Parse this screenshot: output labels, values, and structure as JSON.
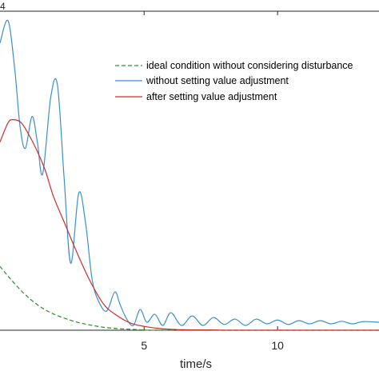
{
  "chart_data": {
    "type": "line",
    "title": "",
    "xlabel": "time/s",
    "ylabel": "",
    "exponent_label": "4",
    "xlim": [
      -0.4,
      13.8
    ],
    "ylim": [
      0,
      100
    ],
    "x_ticks": [
      5,
      10
    ],
    "grid": false,
    "legend_position": "top-right",
    "series": [
      {
        "name": "ideal condition without considering disturbance",
        "color": "#2e8b2e",
        "style": "dashed",
        "x": [
          -0.4,
          0.0,
          0.5,
          1.0,
          1.5,
          2.0,
          2.5,
          3.0,
          3.5,
          4.0,
          4.5,
          5.0,
          6.0,
          13.8
        ],
        "y": [
          20,
          16,
          11.5,
          8,
          5.5,
          3.8,
          2.5,
          1.6,
          0.9,
          0.5,
          0.3,
          0.1,
          0,
          0
        ]
      },
      {
        "name": "without setting value adjustment",
        "color": "#3a8fd0",
        "style": "solid",
        "x": [
          -0.4,
          -0.1,
          0.15,
          0.35,
          0.55,
          0.8,
          1.0,
          1.2,
          1.5,
          1.75,
          2.0,
          2.25,
          2.55,
          2.8,
          3.05,
          3.3,
          3.6,
          3.9,
          4.1,
          4.35,
          4.6,
          4.85,
          5.1,
          5.4,
          5.7,
          6.0,
          6.4,
          6.8,
          7.2,
          7.6,
          8.0,
          8.4,
          8.8,
          9.2,
          9.6,
          10.0,
          10.4,
          10.8,
          11.2,
          11.6,
          12.0,
          12.4,
          12.8,
          13.2,
          13.8
        ],
        "y": [
          90,
          97,
          82,
          64,
          57,
          67,
          59,
          49,
          73,
          77,
          48,
          21,
          43,
          34,
          16,
          9,
          6,
          12,
          8,
          3.5,
          1.5,
          6.5,
          2.5,
          5,
          1.5,
          5.5,
          1.5,
          4.5,
          1.5,
          4,
          1.8,
          3.5,
          1.5,
          3.5,
          2,
          3.2,
          1.8,
          3,
          2,
          3,
          2,
          2.8,
          2,
          2.7,
          2.5
        ]
      },
      {
        "name": "after setting value adjustment",
        "color": "#d12b2b",
        "style": "solid",
        "x": [
          -0.4,
          -0.1,
          0.1,
          0.4,
          0.7,
          1.0,
          1.3,
          1.6,
          2.0,
          2.5,
          3.0,
          3.5,
          4.0,
          4.5,
          5.0,
          5.5,
          6.0,
          6.5,
          7.0,
          7.5,
          8.0,
          9.0,
          10.0,
          13.8
        ],
        "y": [
          59,
          65,
          66,
          65,
          61,
          56,
          50,
          42,
          34,
          24,
          15,
          8,
          4.5,
          2.2,
          1.2,
          0.6,
          0.3,
          0.15,
          0.1,
          0.1,
          0,
          0,
          0,
          0
        ]
      }
    ]
  }
}
